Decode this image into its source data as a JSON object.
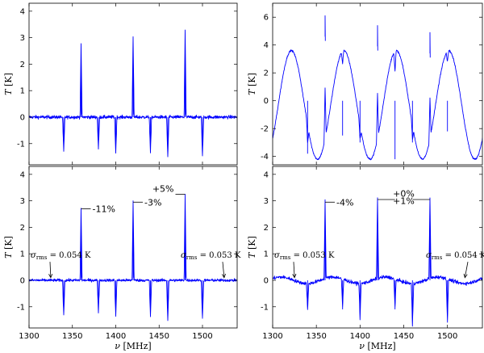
{
  "chart_data": [
    {
      "type": "line",
      "panel": "top-left",
      "xlim": [
        1300,
        1540
      ],
      "ylim": [
        -1.8,
        4.3
      ],
      "xticks": [],
      "yticks": [
        -1,
        0,
        1,
        2,
        3,
        4
      ],
      "xlabel": "",
      "ylabel": "T [K]",
      "series": [
        {
          "color": "#0000ff",
          "baseline": 0,
          "noise": 0.06,
          "peaks": [
            [
              1360,
              2.7
            ],
            [
              1420,
              3.0
            ],
            [
              1480,
              3.25
            ]
          ],
          "dips": [
            [
              1340,
              -1.3
            ],
            [
              1380,
              -1.2
            ],
            [
              1400,
              -1.35
            ],
            [
              1440,
              -1.35
            ],
            [
              1460,
              -1.5
            ],
            [
              1500,
              -1.45
            ]
          ]
        }
      ]
    },
    {
      "type": "line",
      "panel": "top-right",
      "xlim": [
        1300,
        1540
      ],
      "ylim": [
        -4.6,
        7.0
      ],
      "xticks": [],
      "yticks": [
        -4,
        -2,
        0,
        2,
        4,
        6
      ],
      "xlabel": "",
      "ylabel": "T [K]",
      "series": [
        {
          "color": "#0000ff",
          "ripple_amplitude": 3.9,
          "ripple_period_mhz": 60,
          "noise": 0.06,
          "peaks": [
            [
              1360,
              6.1
            ],
            [
              1420,
              5.4
            ],
            [
              1480,
              4.9
            ]
          ],
          "dips": [
            [
              1340,
              -3.8
            ],
            [
              1380,
              -2.5
            ],
            [
              1400,
              -3.0
            ],
            [
              1440,
              -4.2
            ],
            [
              1460,
              -3.0
            ],
            [
              1500,
              -2.2
            ]
          ]
        }
      ]
    },
    {
      "type": "line",
      "panel": "bottom-left",
      "xlim": [
        1300,
        1540
      ],
      "ylim": [
        -1.8,
        4.3
      ],
      "xticks": [
        1300,
        1350,
        1400,
        1450,
        1500
      ],
      "yticks": [
        -1,
        0,
        1,
        2,
        3,
        4
      ],
      "xlabel": "ν [MHz]",
      "ylabel": "T [K]",
      "series": [
        {
          "color": "#0000ff",
          "baseline": 0,
          "noise": 0.05,
          "peaks": [
            [
              1360,
              2.7
            ],
            [
              1420,
              3.0
            ],
            [
              1480,
              3.25
            ]
          ],
          "dips": [
            [
              1340,
              -1.3
            ],
            [
              1380,
              -1.2
            ],
            [
              1400,
              -1.35
            ],
            [
              1440,
              -1.35
            ],
            [
              1460,
              -1.5
            ],
            [
              1500,
              -1.45
            ]
          ]
        }
      ],
      "annotations": [
        {
          "text": "-11%",
          "x": 1360,
          "y": 2.7,
          "side": "right"
        },
        {
          "text": "-3%",
          "x": 1420,
          "y": 2.95,
          "side": "right"
        },
        {
          "text": "+5%",
          "x": 1480,
          "y": 3.25,
          "side": "left"
        }
      ],
      "rms_labels": [
        {
          "sub": "rms",
          "value": "= 0.054 K",
          "arrow_to": [
            1325,
            0.1
          ]
        },
        {
          "sub": "rms",
          "value": "= 0.053 K",
          "arrow_to": [
            1525,
            0.1
          ]
        }
      ]
    },
    {
      "type": "line",
      "panel": "bottom-right",
      "xlim": [
        1300,
        1540
      ],
      "ylim": [
        -1.8,
        4.3
      ],
      "xticks": [
        1300,
        1350,
        1400,
        1450,
        1500
      ],
      "yticks": [
        -1,
        0,
        1,
        2,
        3,
        4
      ],
      "xlabel": "ν [MHz]",
      "ylabel": "T [K]",
      "series": [
        {
          "color": "#0000ff",
          "baseline": 0,
          "residual_ripple": 0.12,
          "noise": 0.06,
          "peaks": [
            [
              1360,
              2.95
            ],
            [
              1420,
              3.05
            ],
            [
              1480,
              3.05
            ]
          ],
          "dips": [
            [
              1340,
              -1.0
            ],
            [
              1380,
              -1.1
            ],
            [
              1400,
              -1.3
            ],
            [
              1440,
              -1.1
            ],
            [
              1460,
              -1.6
            ],
            [
              1500,
              -1.6
            ]
          ]
        }
      ],
      "annotations": [
        {
          "text": "-4%",
          "x": 1360,
          "y": 2.95,
          "side": "right"
        },
        {
          "text": "+0%",
          "x": 1450,
          "y": 3.28,
          "side": "center"
        },
        {
          "text": "+1%",
          "x": 1450,
          "y": 3.0,
          "side": "center"
        }
      ],
      "rms_labels": [
        {
          "sub": "rms",
          "value": "= 0.053 K",
          "arrow_to": [
            1325,
            0.1
          ]
        },
        {
          "sub": "rms",
          "value": "= 0.054 K",
          "arrow_to": [
            1520,
            0.1
          ]
        }
      ]
    }
  ]
}
